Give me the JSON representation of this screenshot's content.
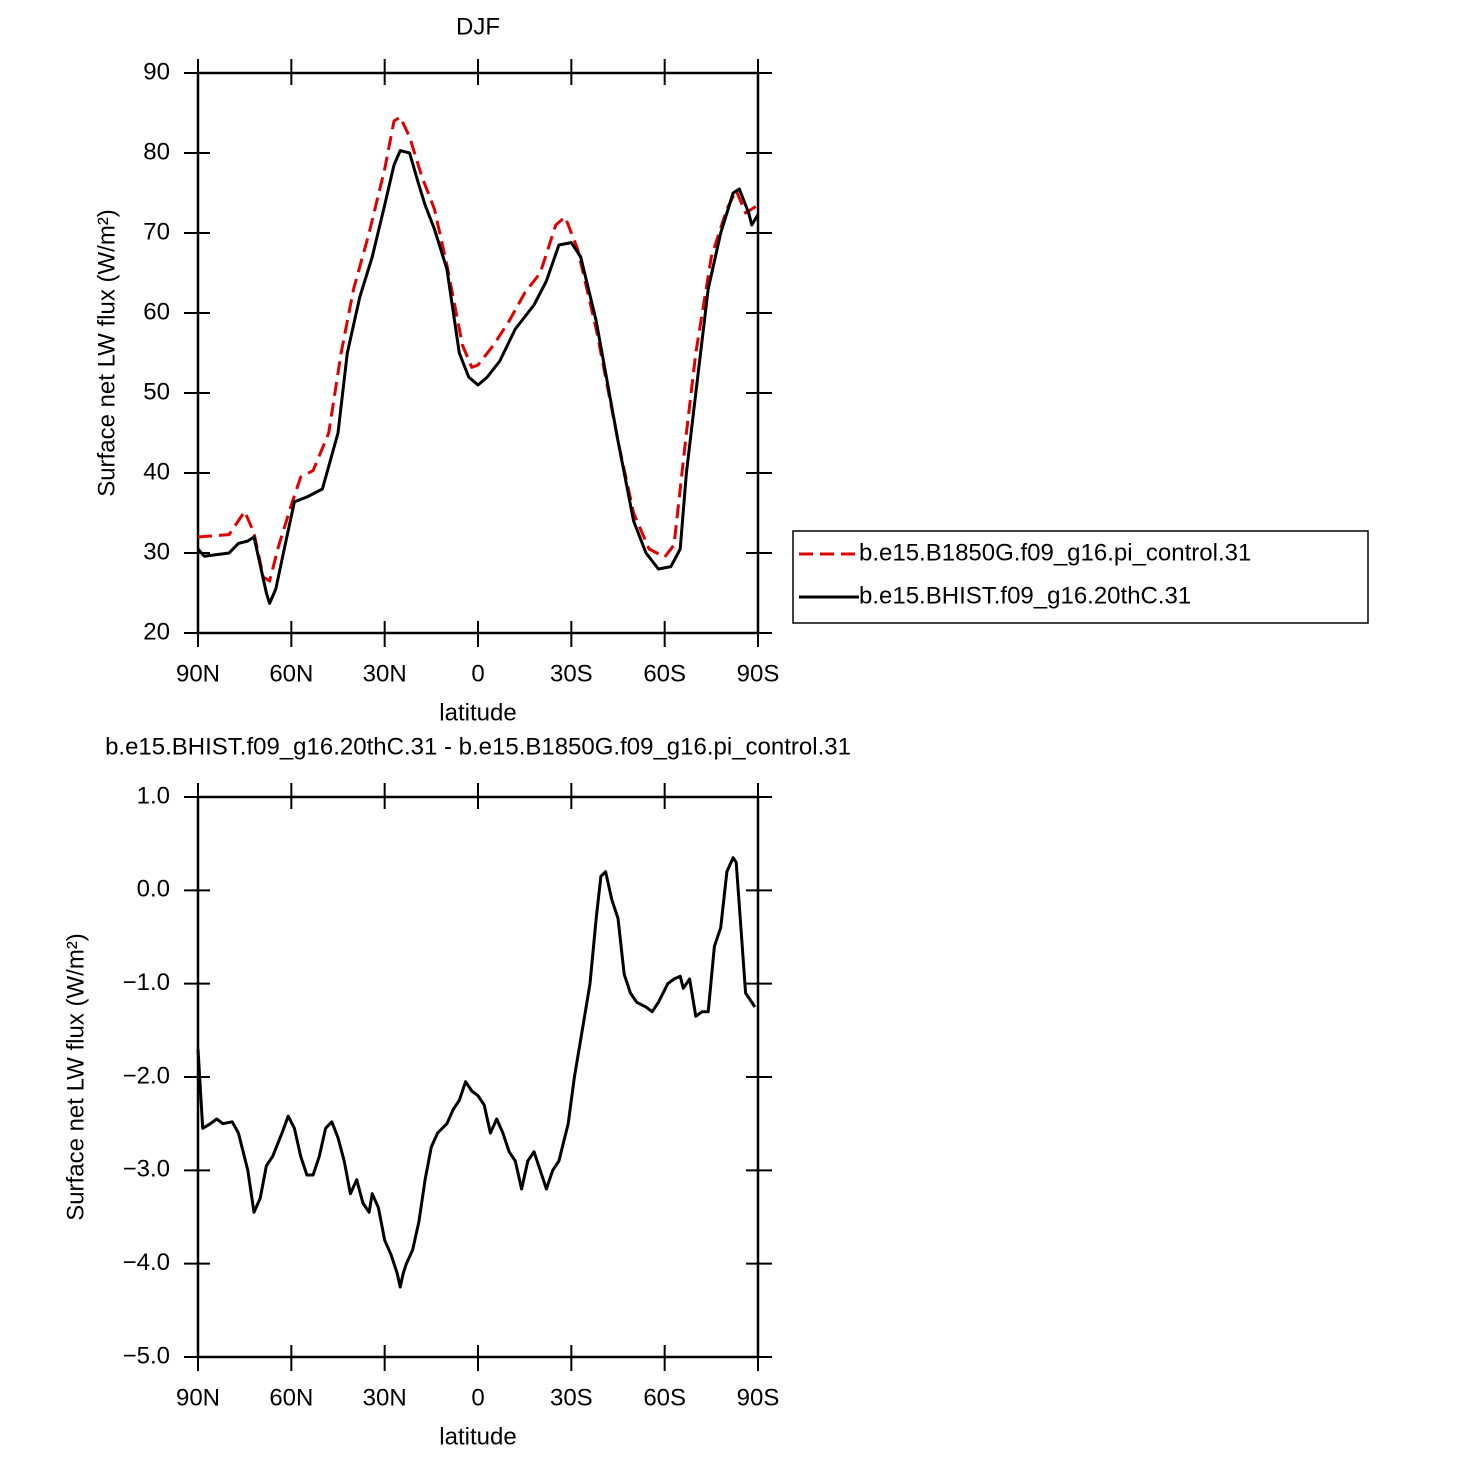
{
  "chart_data": [
    {
      "type": "line",
      "title": "DJF",
      "xlabel": "latitude",
      "ylabel": "Surface net LW flux (W/m²)",
      "xlim": [
        90,
        -90
      ],
      "ylim": [
        20,
        90
      ],
      "xticks": [
        {
          "value": 90,
          "label": "90N"
        },
        {
          "value": 60,
          "label": "60N"
        },
        {
          "value": 30,
          "label": "30N"
        },
        0,
        {
          "value": -30,
          "label": "30S"
        },
        {
          "value": -60,
          "label": "60S"
        },
        {
          "value": -90,
          "label": "90S"
        }
      ],
      "yticks": [
        20,
        30,
        40,
        50,
        60,
        70,
        80,
        90
      ],
      "legend": "right",
      "series": [
        {
          "name": "b.e15.B1850G.f09_g16.pi_control.31",
          "color": "#e00000",
          "dash": true,
          "x": [
            90,
            80,
            75,
            72,
            69,
            67,
            64,
            60,
            57,
            53,
            48,
            44,
            40,
            35,
            30,
            27,
            25,
            22,
            18,
            14,
            10,
            5,
            2,
            0,
            -5,
            -10,
            -15,
            -20,
            -25,
            -28,
            -32,
            -38,
            -45,
            -50,
            -55,
            -60,
            -63,
            -67,
            -70,
            -75,
            -80,
            -83,
            -86,
            -90
          ],
          "values": [
            32,
            32.3,
            35.2,
            32.5,
            27,
            26.5,
            31,
            36,
            39.5,
            40.3,
            45,
            55,
            63,
            70,
            78,
            84,
            84.5,
            82,
            77,
            73,
            66,
            56,
            53.2,
            53.5,
            56,
            59,
            62.5,
            65,
            71,
            72,
            68,
            58,
            44,
            35,
            30.5,
            29.5,
            31,
            45,
            55,
            67,
            73,
            75.3,
            72.5,
            73.5
          ]
        },
        {
          "name": "b.e15.BHIST.f09_g16.20thC.31",
          "color": "#000000",
          "dash": false,
          "x": [
            90,
            88,
            80,
            77,
            74,
            72,
            70,
            68,
            67,
            65,
            62,
            59,
            55,
            50,
            45,
            42,
            38,
            34,
            30,
            27,
            25,
            22,
            19,
            17,
            14,
            10,
            6,
            3,
            0,
            -3,
            -7,
            -12,
            -18,
            -22,
            -26,
            -30,
            -33,
            -38,
            -45,
            -50,
            -54,
            -58,
            -62,
            -65,
            -67,
            -70,
            -74,
            -78,
            -82,
            -84,
            -87,
            -88,
            -90
          ],
          "values": [
            30.5,
            29.6,
            30,
            31.2,
            31.5,
            32,
            28.5,
            25,
            23.7,
            25.5,
            31,
            36.4,
            37,
            38,
            45,
            55,
            62,
            67,
            73.5,
            78.5,
            80.3,
            80,
            76,
            73.5,
            70.5,
            65.5,
            55,
            52,
            51,
            52,
            54,
            58,
            61,
            64,
            68.5,
            68.8,
            67,
            59,
            44,
            34,
            30,
            28,
            28.3,
            30.5,
            40,
            50,
            63,
            70,
            75,
            75.5,
            72.5,
            71,
            72.3
          ]
        }
      ]
    },
    {
      "type": "line",
      "title": "b.e15.BHIST.f09_g16.20thC.31 - b.e15.B1850G.f09_g16.pi_control.31",
      "xlabel": "latitude",
      "ylabel": "Surface net LW flux (W/m²)",
      "xlim": [
        90,
        -90
      ],
      "ylim": [
        -5,
        1
      ],
      "xticks": [
        {
          "value": 90,
          "label": "90N"
        },
        {
          "value": 60,
          "label": "60N"
        },
        {
          "value": 30,
          "label": "30N"
        },
        0,
        {
          "value": -30,
          "label": "30S"
        },
        {
          "value": -60,
          "label": "60S"
        },
        {
          "value": -90,
          "label": "90S"
        }
      ],
      "yticks": [
        {
          "value": -5,
          "label": "−5.0"
        },
        {
          "value": -4,
          "label": "−4.0"
        },
        {
          "value": -3,
          "label": "−3.0"
        },
        {
          "value": -2,
          "label": "−2.0"
        },
        {
          "value": -1,
          "label": "−1.0"
        },
        {
          "value": 0,
          "label": "0.0"
        },
        {
          "value": 1,
          "label": "1.0"
        }
      ],
      "series": [
        {
          "color": "#000000",
          "dash": false,
          "x": [
            90,
            88.5,
            86,
            84,
            82,
            79,
            77,
            74,
            72,
            70,
            68,
            66,
            63,
            61,
            59,
            57,
            55,
            53,
            51,
            49,
            47,
            45,
            43,
            41,
            39,
            37,
            35,
            34,
            32,
            30,
            28,
            26,
            25,
            24,
            23,
            21,
            19,
            17,
            15,
            13,
            10,
            8,
            6,
            4,
            2,
            0,
            -2,
            -4,
            -6,
            -8,
            -10,
            -12,
            -14,
            -16,
            -18,
            -20,
            -22,
            -24,
            -26,
            -29,
            -31,
            -34,
            -36,
            -38,
            -39.5,
            -41,
            -43,
            -45,
            -47,
            -49,
            -51,
            -54,
            -56,
            -58,
            -61,
            -63,
            -65,
            -66,
            -68,
            -70,
            -72,
            -74,
            -76,
            -78,
            -80,
            -82,
            -83,
            -84.5,
            -86,
            -88,
            -89
          ],
          "values": [
            -1.7,
            -2.55,
            -2.5,
            -2.45,
            -2.5,
            -2.48,
            -2.6,
            -3.0,
            -3.45,
            -3.3,
            -2.95,
            -2.85,
            -2.6,
            -2.42,
            -2.55,
            -2.85,
            -3.05,
            -3.05,
            -2.85,
            -2.55,
            -2.48,
            -2.65,
            -2.9,
            -3.25,
            -3.1,
            -3.35,
            -3.45,
            -3.25,
            -3.4,
            -3.75,
            -3.9,
            -4.1,
            -4.25,
            -4.1,
            -4.0,
            -3.85,
            -3.55,
            -3.1,
            -2.75,
            -2.6,
            -2.5,
            -2.35,
            -2.25,
            -2.05,
            -2.15,
            -2.2,
            -2.3,
            -2.6,
            -2.45,
            -2.6,
            -2.8,
            -2.9,
            -3.2,
            -2.9,
            -2.8,
            -3.0,
            -3.2,
            -3.0,
            -2.9,
            -2.5,
            -2.0,
            -1.4,
            -1.0,
            -0.3,
            0.15,
            0.2,
            -0.1,
            -0.3,
            -0.9,
            -1.1,
            -1.2,
            -1.25,
            -1.3,
            -1.2,
            -1.0,
            -0.95,
            -0.92,
            -1.05,
            -0.95,
            -1.35,
            -1.3,
            -1.3,
            -0.6,
            -0.4,
            0.2,
            0.35,
            0.3,
            -0.4,
            -1.1,
            -1.2,
            -1.25
          ]
        }
      ]
    }
  ]
}
